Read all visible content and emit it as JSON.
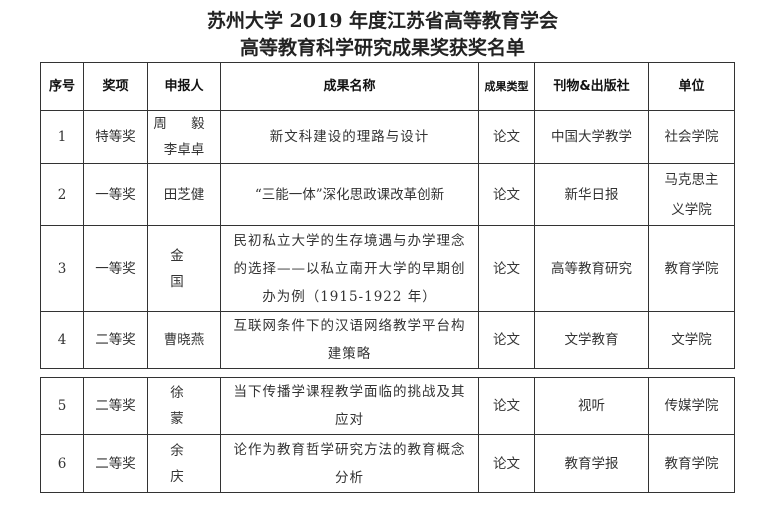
{
  "title_line1": "苏州大学 2019 年度江苏省高等教育学会",
  "title_line2": "高等教育科学研究成果奖获奖名单",
  "headers": {
    "no": "序号",
    "award": "奖项",
    "applicant": "申报人",
    "work": "成果名称",
    "type": "成果类型",
    "publication": "刊物&出版社",
    "unit": "单位"
  },
  "rows": [
    {
      "no": "1",
      "award": "特等奖",
      "applicant": "周 毅",
      "applicant2": "李卓卓",
      "work": "新文科建设的理路与设计",
      "type": "论文",
      "publication": "中国大学教学",
      "unit": "社会学院"
    },
    {
      "no": "2",
      "award": "一等奖",
      "applicant": "田芝健",
      "work": "“三能一体”深化思政课改革创新",
      "type": "论文",
      "publication": "新华日报",
      "unit": "马克思主义学院"
    },
    {
      "no": "3",
      "award": "一等奖",
      "applicant": "金 国",
      "work": "民初私立大学的生存境遇与办学理念的选择——以私立南开大学的早期创办为例（1915-1922 年）",
      "type": "论文",
      "publication": "高等教育研究",
      "unit": "教育学院"
    },
    {
      "no": "4",
      "award": "二等奖",
      "applicant": "曹晓燕",
      "work": "互联网条件下的汉语网络教学平台构建策略",
      "type": "论文",
      "publication": "文学教育",
      "unit": "文学院"
    },
    {
      "no": "5",
      "award": "二等奖",
      "applicant": "徐 蒙",
      "work": "当下传播学课程教学面临的挑战及其应对",
      "type": "论文",
      "publication": "视听",
      "unit": "传媒学院"
    },
    {
      "no": "6",
      "award": "二等奖",
      "applicant": "余 庆",
      "work": "论作为教育哲学研究方法的教育概念分析",
      "type": "论文",
      "publication": "教育学报",
      "unit": "教育学院"
    }
  ]
}
